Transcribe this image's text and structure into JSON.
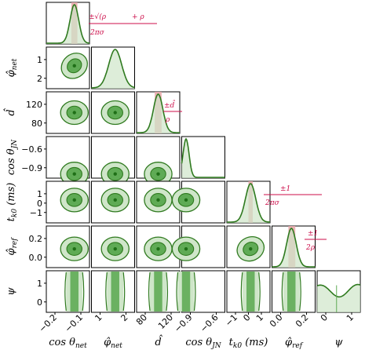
{
  "chart_data": {
    "type": "corner",
    "colors": {
      "line": "#2f7a1f",
      "fill_outer": "#cfe6c9",
      "fill_inner": "#5fab55",
      "core": "#1f6f17",
      "highlight": "#e7a6a8",
      "annotation": "#cc0e4a"
    },
    "parameters": [
      {
        "key": "cos_theta_net",
        "label": "cos θ",
        "label_sub": "net",
        "x_ticks": [
          "−0.2",
          "−0.1"
        ],
        "y_ticks": [],
        "peak": 0.65,
        "width": 0.1,
        "band": [
          0.58,
          0.72
        ],
        "formula": "±√(ρ_k0^−2 + ρ_k1^−2) / 2πσ_f τ_k0k1"
      },
      {
        "key": "phi_net",
        "label": "φ̂",
        "label_sub": "net",
        "x_ticks": [
          "1",
          "2"
        ],
        "y_ticks": [
          "1",
          "2"
        ],
        "peak": 0.55,
        "width": 0.15
      },
      {
        "key": "d_hat",
        "label": "d̂",
        "label_sub": "",
        "x_ticks": [
          "80",
          "120"
        ],
        "y_ticks": [
          "120",
          "80"
        ],
        "peak": 0.5,
        "width": 0.11,
        "band": [
          0.42,
          0.58
        ],
        "formula": "±d̂ / ρ_k0"
      },
      {
        "key": "cos_theta_jn",
        "label": "cos θ",
        "label_sub": "JN",
        "x_ticks": [
          "−0.9",
          "−0.6"
        ],
        "y_ticks": [
          "−0.6",
          "−0.9"
        ],
        "peak": 0.1,
        "width": 0.07
      },
      {
        "key": "t_k0",
        "label": "t",
        "label_sub": "k0",
        "label_suffix": " (ms)",
        "x_ticks": [
          "−1",
          "0",
          "1"
        ],
        "y_ticks": [
          "1",
          "0",
          "−1"
        ],
        "peak": 0.55,
        "width": 0.12,
        "band": [
          0.5,
          0.6
        ],
        "formula": "±1 / 2πσ_f ρ_k0"
      },
      {
        "key": "phi_ref",
        "label": "φ̂",
        "label_sub": "ref",
        "x_ticks": [
          "0.0",
          "0.2"
        ],
        "y_ticks": [
          "0.2",
          "0.0"
        ],
        "peak": 0.45,
        "width": 0.11,
        "band": [
          0.38,
          0.54
        ],
        "formula": "±1 / 2ρ_k0"
      },
      {
        "key": "psi",
        "label": "ψ",
        "label_sub": "",
        "x_ticks": [
          "0",
          "1"
        ],
        "y_ticks": [
          "1",
          "0"
        ],
        "flat": true
      }
    ],
    "formulas": {
      "f0_num": "±√(ρ",
      "f0_tail": "+ ρ",
      "f0_den": "2πσ",
      "f2_num": "±d̂",
      "f2_den": "ρ",
      "f4_num": "±1",
      "f4_den": "2πσ",
      "f5_num": "±1",
      "f5_den": "2ρ"
    }
  }
}
